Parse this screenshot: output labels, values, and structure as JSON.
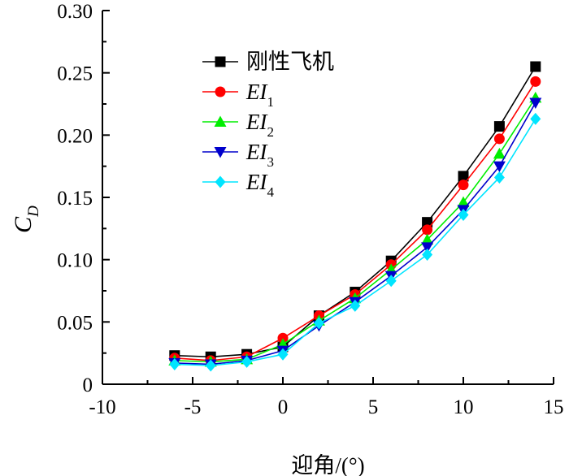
{
  "chart_data": {
    "type": "line",
    "title": "",
    "xlabel": "迎角/(°)",
    "ylabel": {
      "main": "C",
      "sub": "D"
    },
    "xlim": [
      -10,
      15
    ],
    "ylim": [
      0,
      0.3
    ],
    "x_ticks": [
      -10,
      -5,
      0,
      5,
      10,
      15
    ],
    "x_tick_labels": [
      "-10",
      "-5",
      "0",
      "5",
      "10",
      "15"
    ],
    "y_ticks": [
      0,
      0.05,
      0.1,
      0.15,
      0.2,
      0.25,
      0.3
    ],
    "y_tick_labels": [
      "0",
      "0.05",
      "0.10",
      "0.15",
      "0.20",
      "0.25",
      "0.30"
    ],
    "grid": false,
    "legend_position": "top-left",
    "x": [
      -6,
      -4,
      -2,
      0,
      2,
      4,
      6,
      8,
      10,
      12,
      14
    ],
    "series": [
      {
        "name": "刚性飞机",
        "label_main": "刚性飞机",
        "label_sub": "",
        "marker": "square",
        "color": "#000000",
        "values": [
          0.023,
          0.022,
          0.024,
          0.03,
          0.055,
          0.074,
          0.099,
          0.13,
          0.167,
          0.207,
          0.255
        ]
      },
      {
        "name": "EI1",
        "label_main": "EI",
        "label_sub": "1",
        "marker": "circle",
        "color": "#ff0000",
        "values": [
          0.021,
          0.019,
          0.022,
          0.037,
          0.055,
          0.072,
          0.096,
          0.124,
          0.16,
          0.197,
          0.243
        ]
      },
      {
        "name": "EI2",
        "label_main": "EI",
        "label_sub": "2",
        "marker": "triangle-up",
        "color": "#00ee00",
        "values": [
          0.019,
          0.018,
          0.02,
          0.032,
          0.051,
          0.069,
          0.092,
          0.116,
          0.146,
          0.185,
          0.23
        ]
      },
      {
        "name": "EI3",
        "label_main": "EI",
        "label_sub": "3",
        "marker": "triangle-down",
        "color": "#0000cc",
        "values": [
          0.017,
          0.016,
          0.019,
          0.027,
          0.047,
          0.066,
          0.087,
          0.11,
          0.14,
          0.175,
          0.226
        ]
      },
      {
        "name": "EI4",
        "label_main": "EI",
        "label_sub": "4",
        "marker": "diamond",
        "color": "#00e5ff",
        "values": [
          0.016,
          0.015,
          0.018,
          0.024,
          0.049,
          0.063,
          0.083,
          0.104,
          0.136,
          0.166,
          0.213
        ]
      }
    ]
  }
}
